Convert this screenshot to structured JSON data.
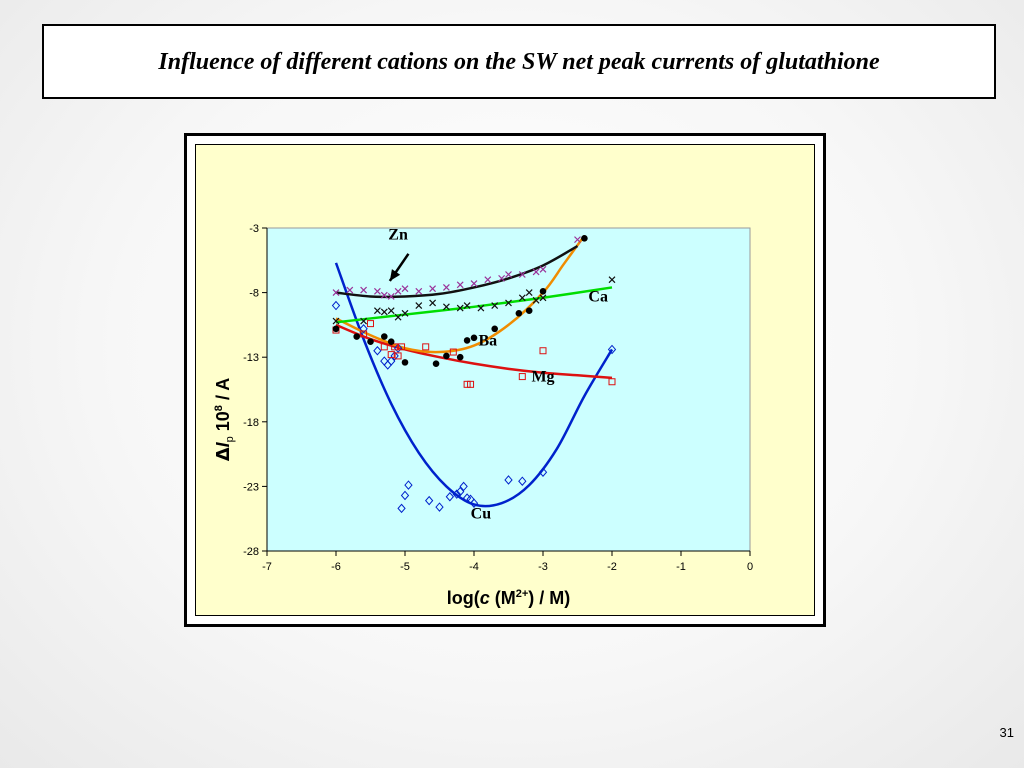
{
  "slide": {
    "title": "Influence of different cations on the SW net peak currents of glutathione",
    "page_number": "31"
  },
  "colors": {
    "plot_bg": "#ccffff",
    "panel_bg": "#ffffcc",
    "cu": "#0022cc",
    "mg": "#dd1111",
    "ba": "#f08c00",
    "ca": "#00dd00",
    "zn": "#111111",
    "zn_marker": "#993399"
  },
  "chart_data": {
    "type": "scatter",
    "title": "",
    "xlabel_parts": {
      "pre": "log(",
      "c": "c",
      "M": " (M",
      "sup": "2+",
      "post": ")  / M)"
    },
    "ylabel_parts": {
      "delta": "Δ",
      "I": "I",
      "sub": "p",
      "ten": " 10",
      "exp": "8",
      "unit": " / A"
    },
    "xlim": [
      -7,
      0
    ],
    "ylim": [
      -3,
      -28
    ],
    "xticks": [
      "-7",
      "-6",
      "-5",
      "-4",
      "-3",
      "-2",
      "-1",
      "0"
    ],
    "yticks": [
      "-28",
      "-23",
      "-18",
      "-13",
      "-8",
      "-3"
    ],
    "grid": false,
    "arrow_annotation": "Zn",
    "series": [
      {
        "name": "Cu",
        "marker": "diamond",
        "color_key": "cu",
        "points": [
          [
            -6.0,
            -9.0
          ],
          [
            -5.6,
            -10.8
          ],
          [
            -5.4,
            -12.5
          ],
          [
            -5.3,
            -13.3
          ],
          [
            -5.25,
            -13.6
          ],
          [
            -5.2,
            -13.3
          ],
          [
            -5.15,
            -12.9
          ],
          [
            -5.1,
            -12.3
          ],
          [
            -5.05,
            -24.7
          ],
          [
            -5.0,
            -23.7
          ],
          [
            -4.95,
            -22.9
          ],
          [
            -4.65,
            -24.1
          ],
          [
            -4.5,
            -24.6
          ],
          [
            -4.35,
            -23.8
          ],
          [
            -4.25,
            -23.6
          ],
          [
            -4.2,
            -23.4
          ],
          [
            -4.15,
            -23.0
          ],
          [
            -4.1,
            -23.9
          ],
          [
            -4.05,
            -24.0
          ],
          [
            -4.0,
            -24.3
          ],
          [
            -3.5,
            -22.5
          ],
          [
            -3.3,
            -22.6
          ],
          [
            -3.0,
            -21.9
          ],
          [
            -2.0,
            -12.4
          ]
        ],
        "fit": [
          [
            -6.0,
            -5.7
          ],
          [
            -5.6,
            -11.6
          ],
          [
            -5.2,
            -16.6
          ],
          [
            -4.8,
            -20.4
          ],
          [
            -4.4,
            -23.0
          ],
          [
            -4.0,
            -24.4
          ],
          [
            -3.6,
            -24.3
          ],
          [
            -3.2,
            -22.9
          ],
          [
            -2.8,
            -20.1
          ],
          [
            -2.4,
            -16.0
          ],
          [
            -2.0,
            -12.4
          ]
        ]
      },
      {
        "name": "Mg",
        "marker": "square",
        "color_key": "mg",
        "points": [
          [
            -6.0,
            -10.9
          ],
          [
            -5.6,
            -11.2
          ],
          [
            -5.5,
            -10.4
          ],
          [
            -5.3,
            -12.2
          ],
          [
            -5.2,
            -12.8
          ],
          [
            -5.15,
            -12.2
          ],
          [
            -5.1,
            -12.9
          ],
          [
            -5.05,
            -12.2
          ],
          [
            -4.7,
            -12.2
          ],
          [
            -4.3,
            -12.6
          ],
          [
            -4.1,
            -15.1
          ],
          [
            -4.05,
            -15.1
          ],
          [
            -3.3,
            -14.5
          ],
          [
            -3.0,
            -12.5
          ],
          [
            -2.0,
            -14.9
          ]
        ],
        "fit": [
          [
            -6.0,
            -10.5
          ],
          [
            -5.5,
            -11.6
          ],
          [
            -5.0,
            -12.4
          ],
          [
            -4.5,
            -13.0
          ],
          [
            -4.0,
            -13.5
          ],
          [
            -3.5,
            -13.9
          ],
          [
            -3.0,
            -14.2
          ],
          [
            -2.5,
            -14.4
          ],
          [
            -2.0,
            -14.6
          ]
        ]
      },
      {
        "name": "Ba",
        "marker": "circle",
        "color_key": "ba",
        "points": [
          [
            -6.0,
            -10.8
          ],
          [
            -5.7,
            -11.4
          ],
          [
            -5.5,
            -11.8
          ],
          [
            -5.3,
            -11.4
          ],
          [
            -5.2,
            -11.8
          ],
          [
            -5.0,
            -13.4
          ],
          [
            -4.55,
            -13.5
          ],
          [
            -4.4,
            -12.9
          ],
          [
            -4.2,
            -13.0
          ],
          [
            -4.1,
            -11.7
          ],
          [
            -4.0,
            -11.5
          ],
          [
            -3.7,
            -10.8
          ],
          [
            -3.35,
            -9.6
          ],
          [
            -3.2,
            -9.4
          ],
          [
            -3.0,
            -7.9
          ],
          [
            -2.4,
            -3.8
          ]
        ],
        "fit": [
          [
            -6.0,
            -10.0
          ],
          [
            -5.5,
            -11.3
          ],
          [
            -5.0,
            -12.3
          ],
          [
            -4.5,
            -12.6
          ],
          [
            -4.0,
            -12.1
          ],
          [
            -3.5,
            -10.5
          ],
          [
            -3.0,
            -8.0
          ],
          [
            -2.7,
            -5.8
          ],
          [
            -2.4,
            -3.6
          ]
        ]
      },
      {
        "name": "Ca",
        "marker": "x",
        "color_key": "zn",
        "points": [
          [
            -6.0,
            -10.2
          ],
          [
            -5.6,
            -10.2
          ],
          [
            -5.4,
            -9.4
          ],
          [
            -5.3,
            -9.5
          ],
          [
            -5.2,
            -9.4
          ],
          [
            -5.1,
            -9.9
          ],
          [
            -5.0,
            -9.6
          ],
          [
            -4.8,
            -9.0
          ],
          [
            -4.6,
            -8.8
          ],
          [
            -4.4,
            -9.1
          ],
          [
            -4.2,
            -9.2
          ],
          [
            -4.1,
            -9.0
          ],
          [
            -3.9,
            -9.2
          ],
          [
            -3.7,
            -9.0
          ],
          [
            -3.5,
            -8.8
          ],
          [
            -3.3,
            -8.4
          ],
          [
            -3.2,
            -8.0
          ],
          [
            -3.1,
            -8.6
          ],
          [
            -3.0,
            -8.4
          ],
          [
            -2.0,
            -7.0
          ]
        ],
        "fit": [
          [
            -6.0,
            -10.3
          ],
          [
            -5.0,
            -9.7
          ],
          [
            -4.0,
            -9.1
          ],
          [
            -3.0,
            -8.4
          ],
          [
            -2.0,
            -7.6
          ]
        ]
      },
      {
        "name": "Zn",
        "marker": "x",
        "color_key": "zn_marker",
        "points": [
          [
            -6.0,
            -8.0
          ],
          [
            -5.8,
            -7.8
          ],
          [
            -5.6,
            -7.8
          ],
          [
            -5.4,
            -7.9
          ],
          [
            -5.3,
            -8.2
          ],
          [
            -5.2,
            -8.3
          ],
          [
            -5.1,
            -7.9
          ],
          [
            -5.0,
            -7.7
          ],
          [
            -4.8,
            -7.9
          ],
          [
            -4.6,
            -7.7
          ],
          [
            -4.4,
            -7.6
          ],
          [
            -4.2,
            -7.4
          ],
          [
            -4.0,
            -7.3
          ],
          [
            -3.8,
            -7.0
          ],
          [
            -3.6,
            -6.9
          ],
          [
            -3.5,
            -6.6
          ],
          [
            -3.3,
            -6.6
          ],
          [
            -3.1,
            -6.4
          ],
          [
            -3.0,
            -6.2
          ],
          [
            -2.5,
            -3.9
          ]
        ],
        "fit": [
          [
            -6.0,
            -8.0
          ],
          [
            -5.5,
            -8.3
          ],
          [
            -5.0,
            -8.3
          ],
          [
            -4.5,
            -8.1
          ],
          [
            -4.0,
            -7.6
          ],
          [
            -3.5,
            -6.9
          ],
          [
            -3.0,
            -5.9
          ],
          [
            -2.5,
            -4.4
          ]
        ]
      }
    ]
  }
}
